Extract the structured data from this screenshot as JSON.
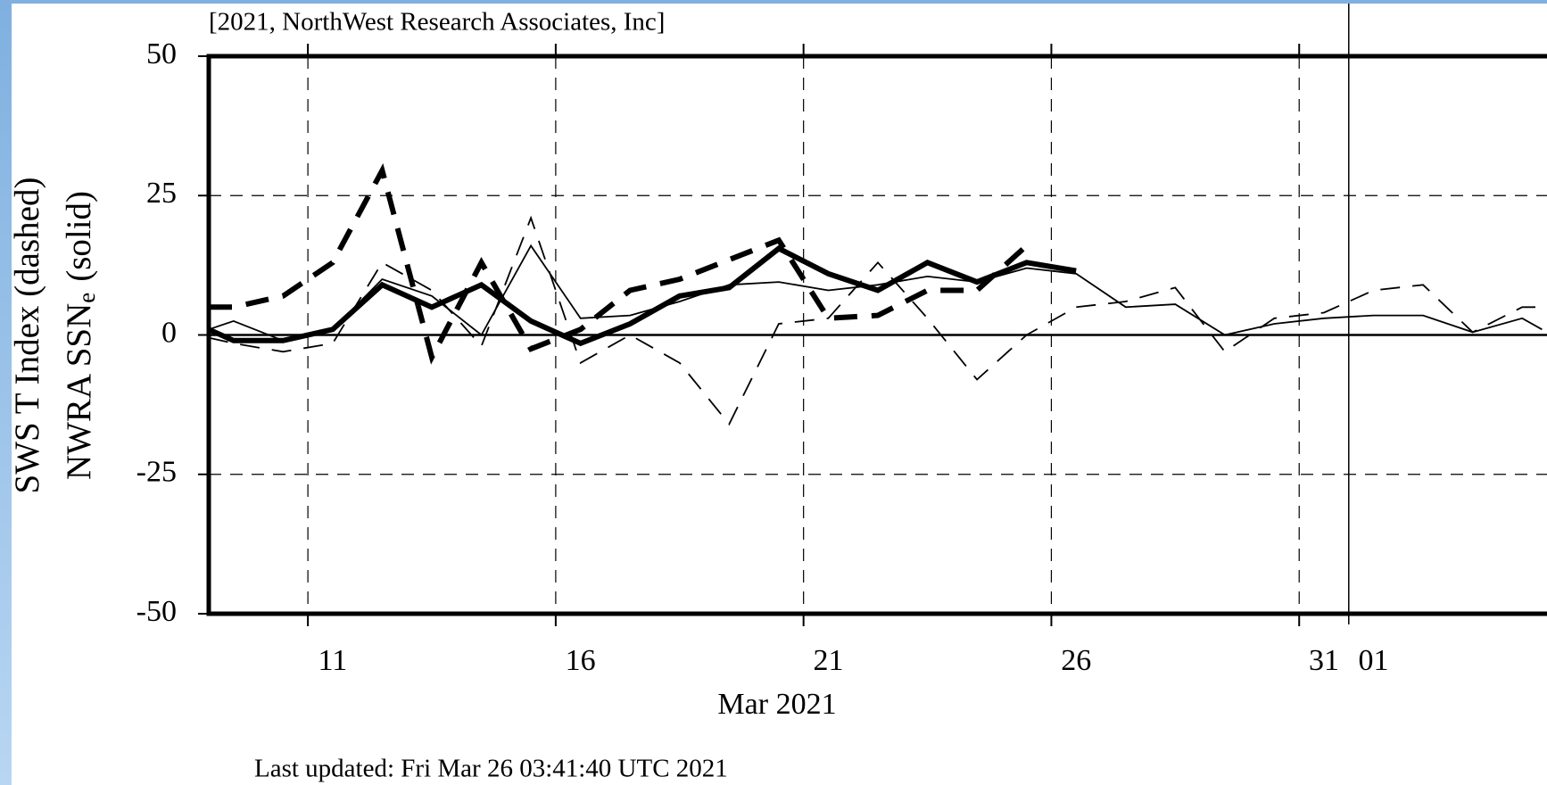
{
  "chart_data": {
    "type": "line",
    "credit": "[2021, NorthWest Research Associates, Inc]",
    "ylabel": "SWS T Index (dashed)",
    "ylabel_line2": "NWRA SSN",
    "ylabel_line2_sub": "e",
    "ylabel_line2_suffix": "(solid)",
    "xlabel": "Mar 2021",
    "footer": "Last updated: Fri Mar 26 03:41:40 UTC 2021",
    "xlim": [
      9,
      36
    ],
    "xticks": [
      11,
      16,
      21,
      26,
      31,
      {
        "value": 32,
        "label": "01"
      }
    ],
    "ylim": [
      -50,
      50
    ],
    "yticks": [
      -50,
      -25,
      0,
      25,
      50
    ],
    "grid": true,
    "series": [
      {
        "color": "#000000",
        "style": "solid",
        "width": "thin",
        "x": [
          9.0,
          9.5,
          10.5,
          11.5,
          12.5,
          13.5,
          14.5,
          15.5,
          16.5,
          17.5,
          18.5,
          19.5,
          20.5,
          21.5,
          22.5,
          23.5,
          24.5,
          25.5,
          26.5,
          27.5,
          28.5,
          29.5,
          30.5,
          31.5,
          32.5,
          33.5,
          34.5,
          35.5,
          35.9
        ],
        "values": [
          1,
          2.5,
          -1,
          1,
          10,
          7,
          0,
          16,
          3,
          3.5,
          6,
          9,
          9.5,
          8,
          9,
          10.5,
          9.5,
          12,
          11,
          5,
          5.5,
          0,
          2,
          3,
          3.5,
          3.5,
          0.5,
          3,
          1
        ]
      },
      {
        "color": "#000000",
        "style": "dashed",
        "width": "thin",
        "x": [
          9.0,
          9.5,
          10.5,
          11.5,
          12.5,
          13.5,
          14.5,
          15.5,
          16.5,
          17.5,
          18.5,
          19.5,
          20.5,
          21.5,
          22.5,
          23.5,
          24.5,
          25.5,
          26.5,
          27.5,
          28.5,
          29.5,
          30.5,
          31.5,
          32.5,
          33.5,
          34.5,
          35.5,
          35.9
        ],
        "values": [
          -0.5,
          -1.5,
          -3,
          -1.5,
          13,
          8,
          -2,
          21,
          -5,
          0,
          -5,
          -16,
          2,
          3,
          13,
          3,
          -8,
          0,
          5,
          6,
          8.5,
          -3,
          3,
          4,
          8,
          9,
          0.5,
          5,
          5
        ]
      },
      {
        "color": "#000000",
        "style": "solid",
        "width": "thick",
        "x": [
          9.0,
          9.5,
          10.5,
          11.5,
          12.5,
          13.5,
          14.5,
          15.5,
          16.5,
          17.5,
          18.5,
          19.5,
          20.5,
          21.5,
          22.5,
          23.5,
          24.5,
          25.5,
          26.5
        ],
        "values": [
          1,
          -1,
          -1,
          1,
          9,
          5,
          9,
          2.5,
          -1.5,
          2,
          7,
          8.5,
          15.5,
          11,
          8,
          13,
          9.5,
          13,
          11.5
        ]
      },
      {
        "color": "#000000",
        "style": "dashed",
        "width": "thick",
        "x": [
          9.0,
          9.5,
          10.5,
          11.5,
          12.5,
          13.5,
          14.5,
          15.5,
          16.5,
          17.5,
          18.5,
          19.5,
          20.5,
          21.5,
          22.5,
          23.5,
          24.5,
          25.5
        ],
        "values": [
          5,
          5,
          7,
          13,
          29.5,
          -4,
          13,
          -2.5,
          1,
          8,
          10,
          13.5,
          17,
          3,
          3.5,
          8,
          8,
          16
        ]
      }
    ]
  }
}
